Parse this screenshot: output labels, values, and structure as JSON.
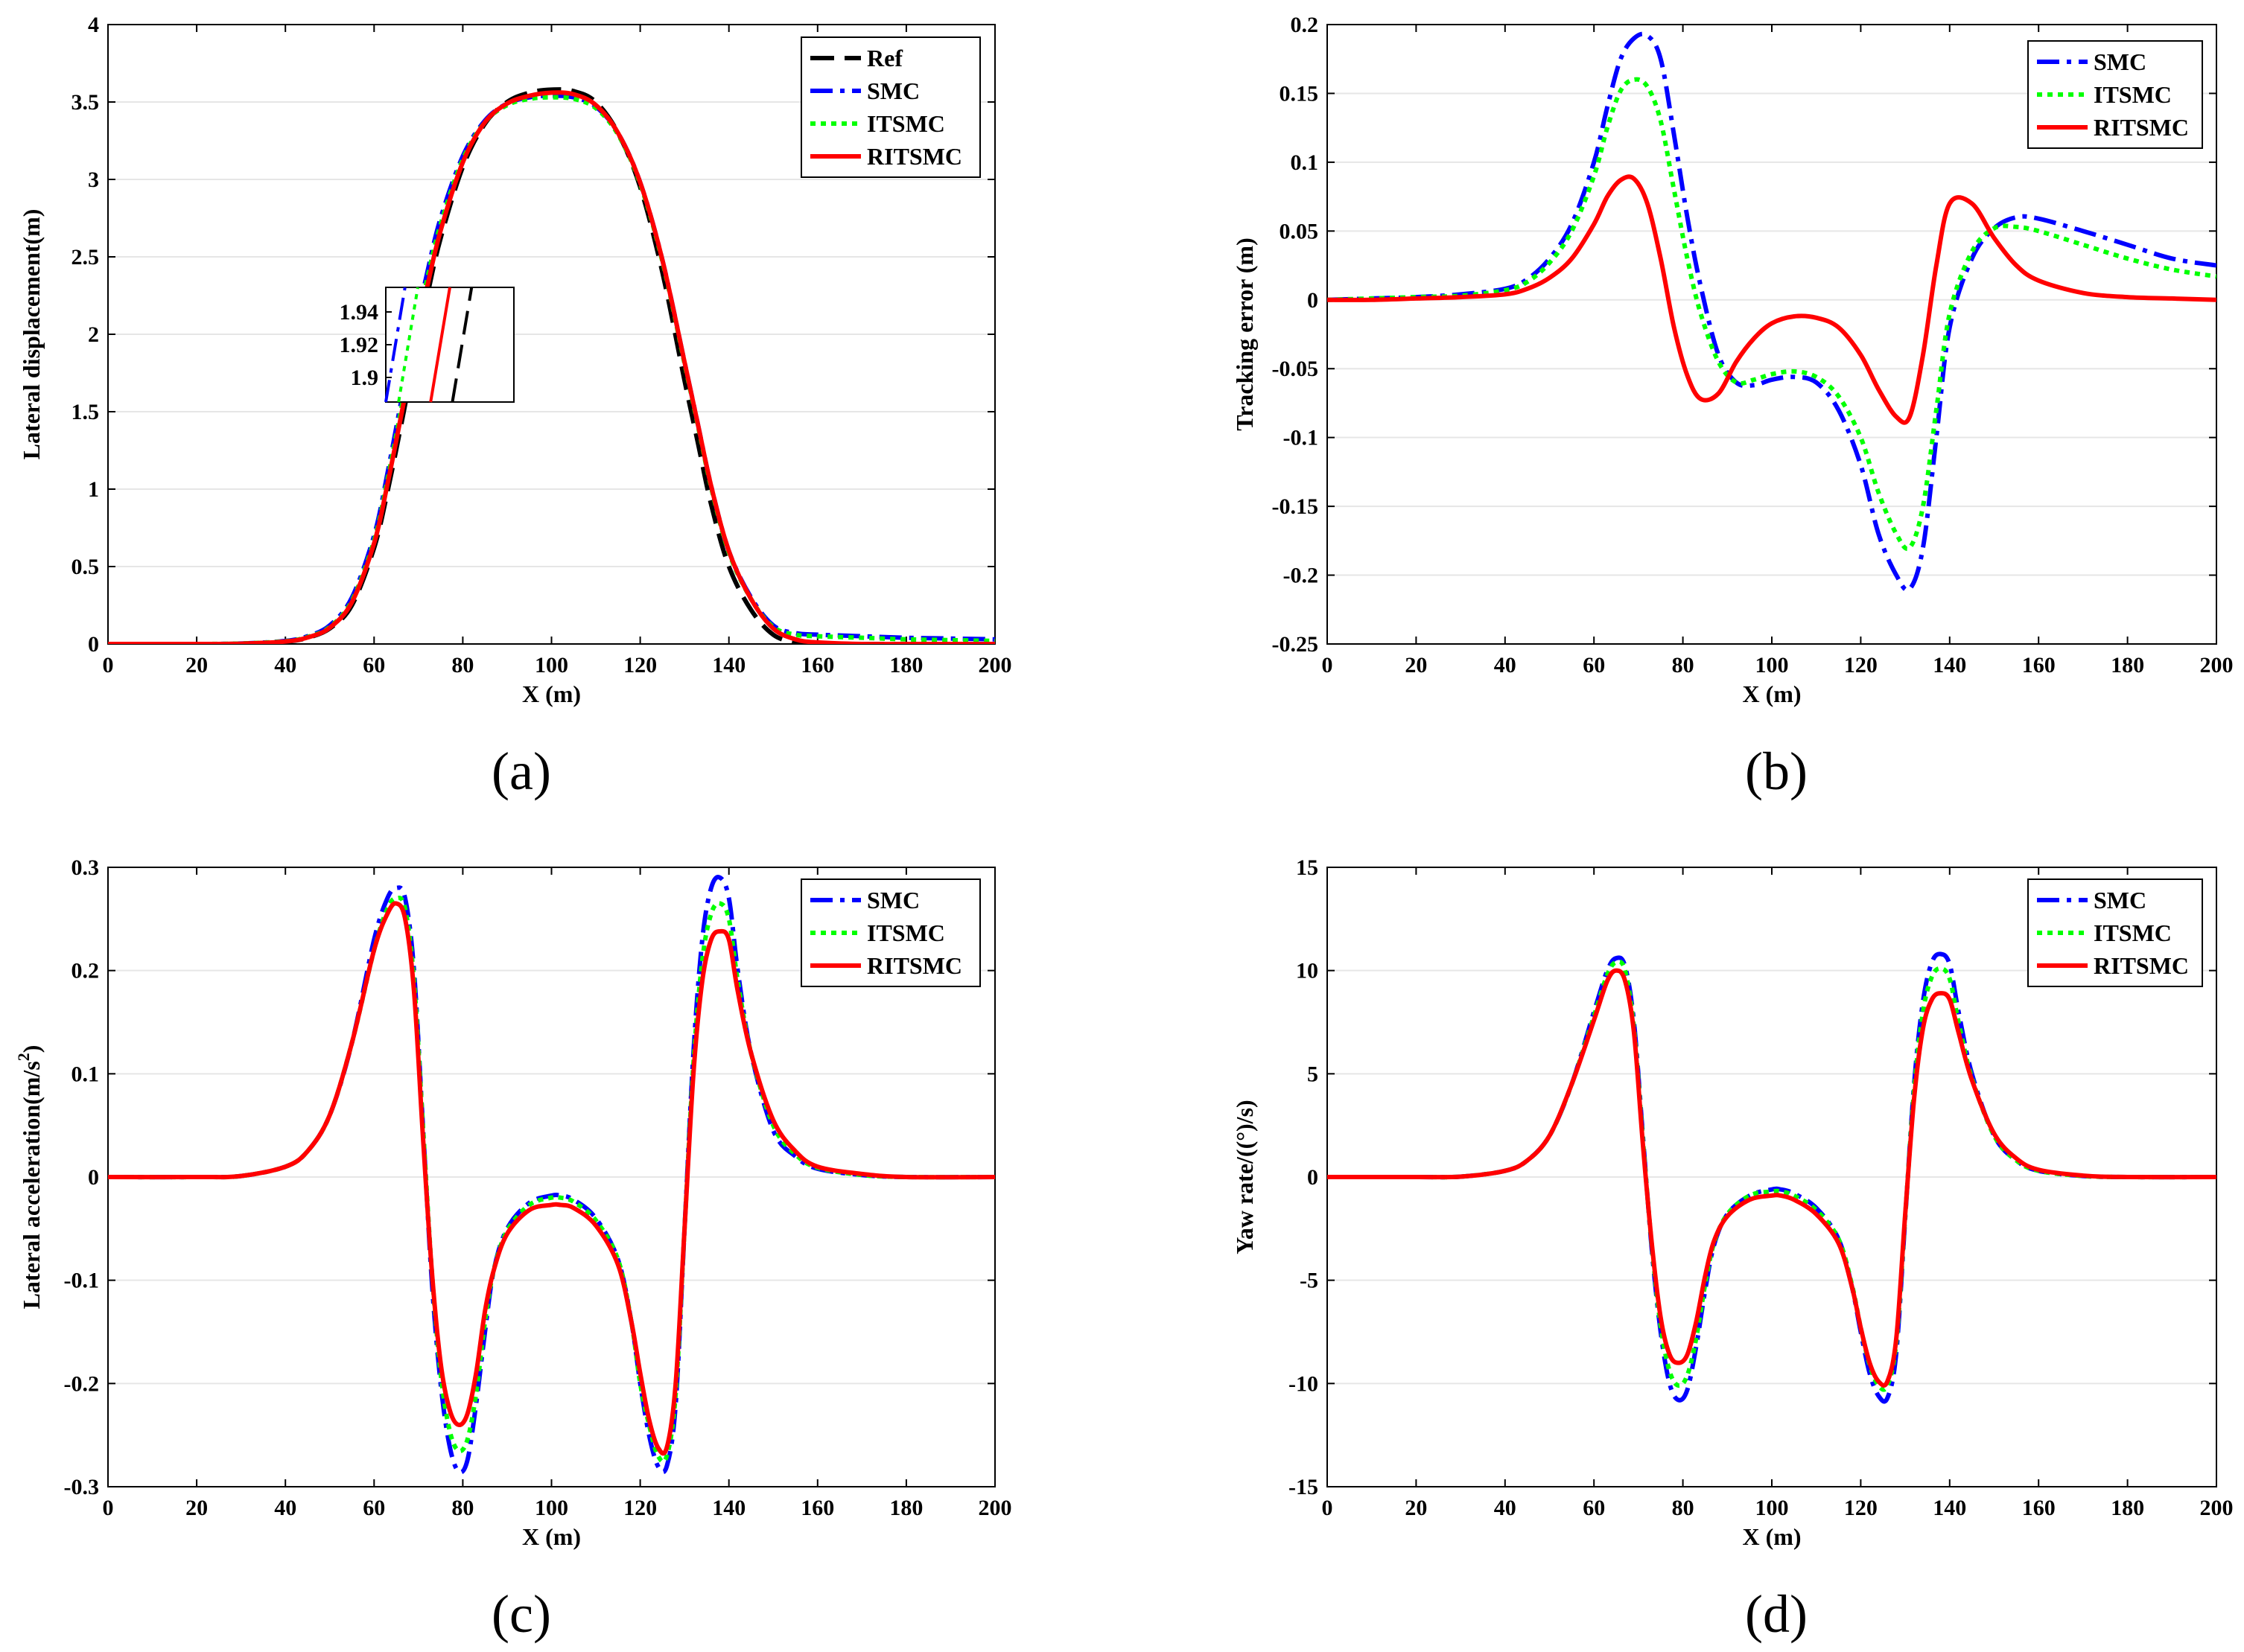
{
  "colors": {
    "Ref": "#000000",
    "SMC": "#0000ff",
    "ITSMC": "#00ff00",
    "RITSMC": "#ff0000",
    "grid": "#e6e6e6"
  },
  "chart_data": [
    {
      "type": "line",
      "panel_label": "(a)",
      "xlabel": "X (m)",
      "ylabel": "Lateral displacement(m)",
      "xlim": [
        0,
        200
      ],
      "ylim": [
        0,
        4
      ],
      "xticks": [
        0,
        20,
        40,
        60,
        80,
        100,
        120,
        140,
        160,
        180,
        200
      ],
      "yticks": [
        0,
        0.5,
        1,
        1.5,
        2,
        2.5,
        3,
        3.5,
        4
      ],
      "ytick_labels": [
        "0",
        "0.5",
        "1",
        "1.5",
        "2",
        "2.5",
        "3",
        "3.5",
        "4"
      ],
      "grid": true,
      "legend": "top-right",
      "x": [
        0,
        10,
        20,
        30,
        40,
        45,
        50,
        55,
        60,
        63,
        66,
        69,
        72,
        75,
        80,
        85,
        90,
        95,
        100,
        105,
        110,
        115,
        120,
        125,
        130,
        133,
        136,
        140,
        145,
        150,
        155,
        160,
        170,
        180,
        190,
        200
      ],
      "series": [
        {
          "name": "Ref",
          "style": "dashed",
          "values": [
            0,
            0,
            0,
            0.002,
            0.015,
            0.04,
            0.1,
            0.25,
            0.62,
            0.98,
            1.4,
            1.84,
            2.25,
            2.62,
            3.08,
            3.36,
            3.5,
            3.56,
            3.58,
            3.57,
            3.5,
            3.3,
            2.95,
            2.4,
            1.7,
            1.3,
            0.9,
            0.5,
            0.22,
            0.06,
            0.01,
            0,
            0,
            0,
            0,
            0
          ]
        },
        {
          "name": "SMC",
          "style": "dashdot",
          "values": [
            0,
            0,
            0,
            0.003,
            0.02,
            0.05,
            0.12,
            0.3,
            0.7,
            1.1,
            1.55,
            2.0,
            2.4,
            2.75,
            3.15,
            3.38,
            3.49,
            3.53,
            3.54,
            3.53,
            3.47,
            3.3,
            2.98,
            2.48,
            1.82,
            1.42,
            1.02,
            0.6,
            0.3,
            0.12,
            0.07,
            0.06,
            0.05,
            0.04,
            0.035,
            0.03
          ]
        },
        {
          "name": "ITSMC",
          "style": "dotted",
          "values": [
            0,
            0,
            0,
            0.003,
            0.018,
            0.045,
            0.11,
            0.28,
            0.67,
            1.06,
            1.5,
            1.95,
            2.36,
            2.71,
            3.13,
            3.37,
            3.48,
            3.52,
            3.53,
            3.52,
            3.46,
            3.29,
            2.97,
            2.47,
            1.81,
            1.41,
            1.01,
            0.59,
            0.29,
            0.11,
            0.06,
            0.05,
            0.04,
            0.03,
            0.025,
            0.02
          ]
        },
        {
          "name": "RITSMC",
          "style": "solid",
          "values": [
            0,
            0,
            0,
            0.002,
            0.016,
            0.042,
            0.105,
            0.27,
            0.65,
            1.03,
            1.46,
            1.9,
            2.31,
            2.67,
            3.11,
            3.37,
            3.49,
            3.54,
            3.56,
            3.55,
            3.48,
            3.3,
            2.98,
            2.48,
            1.82,
            1.42,
            1.02,
            0.6,
            0.29,
            0.1,
            0.03,
            0.01,
            0,
            0,
            0,
            0
          ]
        }
      ],
      "inset": {
        "xlim": [
          0,
          1
        ],
        "ylim": [
          1.885,
          1.955
        ],
        "yticks": [
          1.9,
          1.92,
          1.94
        ],
        "ytick_labels": [
          "1.9",
          "1.92",
          "1.94"
        ],
        "lines": [
          {
            "name": "SMC",
            "x": [
              0.0,
              0.15
            ]
          },
          {
            "name": "ITSMC",
            "x": [
              0.1,
              0.25
            ]
          },
          {
            "name": "RITSMC",
            "x": [
              0.35,
              0.5
            ]
          },
          {
            "name": "Ref",
            "x": [
              0.52,
              0.67
            ]
          }
        ]
      }
    },
    {
      "type": "line",
      "panel_label": "(b)",
      "xlabel": "X (m)",
      "ylabel": "Tracking error (m)",
      "xlim": [
        0,
        200
      ],
      "ylim": [
        -0.25,
        0.2
      ],
      "xticks": [
        0,
        20,
        40,
        60,
        80,
        100,
        120,
        140,
        160,
        180,
        200
      ],
      "yticks": [
        -0.25,
        -0.2,
        -0.15,
        -0.1,
        -0.05,
        0,
        0.05,
        0.1,
        0.15,
        0.2
      ],
      "ytick_labels": [
        "-0.25",
        "-0.2",
        "-0.15",
        "-0.1",
        "-0.05",
        "0",
        "0.05",
        "0.1",
        "0.15",
        "0.2"
      ],
      "grid": true,
      "legend": "top-right",
      "x": [
        0,
        10,
        20,
        30,
        40,
        45,
        50,
        55,
        60,
        63,
        66,
        69,
        72,
        75,
        78,
        81,
        84,
        88,
        92,
        96,
        100,
        105,
        110,
        115,
        120,
        124,
        128,
        131,
        134,
        137,
        140,
        145,
        150,
        155,
        160,
        170,
        180,
        190,
        200
      ],
      "series": [
        {
          "name": "SMC",
          "style": "dashdot",
          "values": [
            0,
            0.001,
            0.002,
            0.004,
            0.008,
            0.015,
            0.03,
            0.055,
            0.1,
            0.14,
            0.175,
            0.19,
            0.192,
            0.175,
            0.12,
            0.06,
            0.01,
            -0.04,
            -0.06,
            -0.062,
            -0.058,
            -0.056,
            -0.06,
            -0.08,
            -0.12,
            -0.17,
            -0.2,
            -0.21,
            -0.18,
            -0.1,
            -0.02,
            0.03,
            0.052,
            0.06,
            0.059,
            0.05,
            0.04,
            0.03,
            0.025
          ]
        },
        {
          "name": "ITSMC",
          "style": "dotted",
          "values": [
            0,
            0.001,
            0.002,
            0.003,
            0.007,
            0.013,
            0.027,
            0.05,
            0.09,
            0.125,
            0.152,
            0.16,
            0.155,
            0.13,
            0.08,
            0.03,
            -0.01,
            -0.045,
            -0.06,
            -0.058,
            -0.054,
            -0.052,
            -0.056,
            -0.07,
            -0.1,
            -0.14,
            -0.17,
            -0.18,
            -0.15,
            -0.08,
            -0.01,
            0.035,
            0.052,
            0.053,
            0.05,
            0.04,
            0.03,
            0.022,
            0.017
          ]
        },
        {
          "name": "RITSMC",
          "style": "solid",
          "values": [
            0,
            0,
            0.001,
            0.002,
            0.004,
            0.008,
            0.016,
            0.03,
            0.055,
            0.075,
            0.087,
            0.088,
            0.07,
            0.03,
            -0.02,
            -0.055,
            -0.072,
            -0.068,
            -0.045,
            -0.028,
            -0.017,
            -0.012,
            -0.013,
            -0.02,
            -0.04,
            -0.065,
            -0.085,
            -0.085,
            -0.04,
            0.025,
            0.07,
            0.07,
            0.045,
            0.025,
            0.014,
            0.005,
            0.002,
            0.001,
            0
          ]
        }
      ]
    },
    {
      "type": "line",
      "panel_label": "(c)",
      "xlabel": "X (m)",
      "ylabel": "Lateral acceleration(m/s",
      "ylabel_sup": "2",
      "ylabel_end": ")",
      "xlim": [
        0,
        200
      ],
      "ylim": [
        -0.3,
        0.3
      ],
      "xticks": [
        0,
        20,
        40,
        60,
        80,
        100,
        120,
        140,
        160,
        180,
        200
      ],
      "yticks": [
        -0.3,
        -0.2,
        -0.1,
        0,
        0.1,
        0.2,
        0.3
      ],
      "ytick_labels": [
        "-0.3",
        "-0.2",
        "-0.1",
        "0",
        "0.1",
        "0.2",
        "0.3"
      ],
      "grid": true,
      "legend": "top-right",
      "x": [
        0,
        20,
        30,
        40,
        45,
        50,
        55,
        60,
        63,
        65,
        67,
        69,
        71,
        73,
        75,
        77,
        79,
        81,
        83,
        85,
        87,
        90,
        95,
        100,
        102,
        105,
        110,
        115,
        118,
        120,
        122,
        124,
        126,
        128,
        130,
        132,
        134,
        136,
        138,
        140,
        142,
        145,
        150,
        155,
        160,
        170,
        180,
        200
      ],
      "series": [
        {
          "name": "SMC",
          "style": "dashdot",
          "values": [
            0,
            0,
            0.001,
            0.01,
            0.025,
            0.06,
            0.13,
            0.23,
            0.27,
            0.28,
            0.27,
            0.2,
            0.05,
            -0.1,
            -0.2,
            -0.26,
            -0.285,
            -0.275,
            -0.22,
            -0.15,
            -0.09,
            -0.05,
            -0.025,
            -0.018,
            -0.018,
            -0.022,
            -0.04,
            -0.08,
            -0.14,
            -0.2,
            -0.25,
            -0.28,
            -0.28,
            -0.22,
            -0.05,
            0.12,
            0.23,
            0.28,
            0.29,
            0.27,
            0.2,
            0.12,
            0.045,
            0.02,
            0.008,
            0.002,
            0,
            0
          ]
        },
        {
          "name": "ITSMC",
          "style": "dotted",
          "values": [
            0,
            0,
            0.001,
            0.01,
            0.025,
            0.06,
            0.13,
            0.22,
            0.26,
            0.27,
            0.26,
            0.19,
            0.05,
            -0.09,
            -0.19,
            -0.245,
            -0.265,
            -0.255,
            -0.21,
            -0.14,
            -0.09,
            -0.052,
            -0.027,
            -0.02,
            -0.02,
            -0.024,
            -0.042,
            -0.08,
            -0.14,
            -0.2,
            -0.24,
            -0.27,
            -0.27,
            -0.21,
            -0.05,
            0.11,
            0.21,
            0.255,
            0.265,
            0.25,
            0.19,
            0.12,
            0.05,
            0.022,
            0.009,
            0.002,
            0,
            0
          ]
        },
        {
          "name": "RITSMC",
          "style": "solid",
          "values": [
            0,
            0,
            0.001,
            0.01,
            0.025,
            0.06,
            0.13,
            0.22,
            0.255,
            0.265,
            0.25,
            0.18,
            0.04,
            -0.09,
            -0.18,
            -0.225,
            -0.24,
            -0.23,
            -0.19,
            -0.13,
            -0.09,
            -0.055,
            -0.032,
            -0.027,
            -0.027,
            -0.03,
            -0.047,
            -0.085,
            -0.14,
            -0.19,
            -0.235,
            -0.262,
            -0.262,
            -0.2,
            -0.05,
            0.1,
            0.19,
            0.23,
            0.238,
            0.23,
            0.18,
            0.12,
            0.055,
            0.025,
            0.01,
            0.003,
            0,
            0
          ]
        }
      ]
    },
    {
      "type": "line",
      "panel_label": "(d)",
      "xlabel": "X (m)",
      "ylabel": "Yaw rate/((°)/s)",
      "xlim": [
        0,
        200
      ],
      "ylim": [
        -15,
        15
      ],
      "xticks": [
        0,
        20,
        40,
        60,
        80,
        100,
        120,
        140,
        160,
        180,
        200
      ],
      "yticks": [
        -15,
        -10,
        -5,
        0,
        5,
        10,
        15
      ],
      "ytick_labels": [
        "-15",
        "-10",
        "-5",
        "0",
        "5",
        "10",
        "15"
      ],
      "grid": true,
      "legend": "top-right",
      "x": [
        0,
        20,
        30,
        40,
        45,
        50,
        55,
        60,
        63,
        65,
        67,
        69,
        71,
        73,
        75,
        77,
        79,
        81,
        83,
        85,
        87,
        90,
        95,
        100,
        102,
        105,
        110,
        115,
        118,
        120,
        122,
        124,
        126,
        128,
        130,
        132,
        134,
        136,
        138,
        140,
        142,
        145,
        150,
        155,
        160,
        170,
        180,
        200
      ],
      "series": [
        {
          "name": "SMC",
          "style": "dashdot",
          "values": [
            0,
            0,
            0.02,
            0.3,
            0.8,
            2,
            4.5,
            8,
            10,
            10.6,
            10.2,
            7.5,
            2,
            -3.5,
            -7.5,
            -10,
            -10.8,
            -10.3,
            -8.2,
            -5.5,
            -3.3,
            -1.8,
            -0.9,
            -0.6,
            -0.6,
            -0.8,
            -1.5,
            -3,
            -5.3,
            -7.5,
            -9.5,
            -10.6,
            -10.7,
            -8.5,
            -2,
            4.5,
            8.5,
            10.4,
            10.8,
            10.3,
            8,
            5,
            2,
            0.8,
            0.3,
            0.05,
            0,
            0
          ]
        },
        {
          "name": "ITSMC",
          "style": "dotted",
          "values": [
            0,
            0,
            0.02,
            0.3,
            0.8,
            2,
            4.5,
            7.8,
            9.8,
            10.4,
            10,
            7.2,
            1.8,
            -3.3,
            -7.2,
            -9.4,
            -10.1,
            -9.6,
            -7.8,
            -5.2,
            -3.2,
            -1.8,
            -0.9,
            -0.7,
            -0.7,
            -0.9,
            -1.6,
            -3,
            -5.2,
            -7.3,
            -9.1,
            -10.1,
            -10.1,
            -8,
            -1.9,
            4.2,
            8,
            9.7,
            10.1,
            9.6,
            7.5,
            4.8,
            2,
            0.8,
            0.3,
            0.05,
            0,
            0
          ]
        },
        {
          "name": "RITSMC",
          "style": "solid",
          "values": [
            0,
            0,
            0.02,
            0.3,
            0.8,
            2,
            4.5,
            7.6,
            9.5,
            10,
            9.5,
            7,
            1.6,
            -3.2,
            -6.8,
            -8.6,
            -9,
            -8.6,
            -7,
            -4.8,
            -3.1,
            -1.9,
            -1.1,
            -0.9,
            -0.9,
            -1.1,
            -1.8,
            -3.2,
            -5.3,
            -7.3,
            -9,
            -9.9,
            -9.9,
            -7.8,
            -1.8,
            3.8,
            7.2,
            8.6,
            8.9,
            8.6,
            7,
            4.7,
            2.1,
            0.9,
            0.35,
            0.07,
            0,
            0
          ]
        }
      ]
    }
  ]
}
